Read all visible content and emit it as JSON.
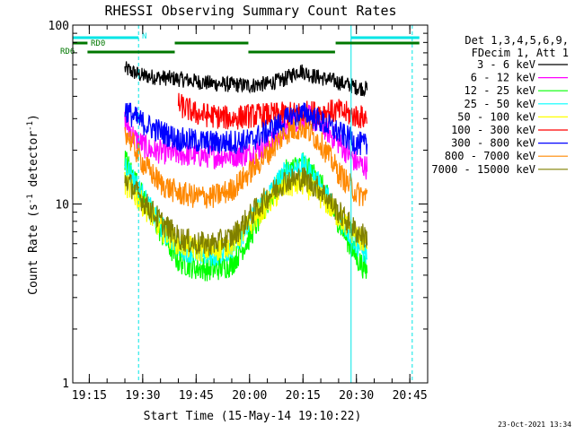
{
  "colors": {
    "background": "#ffffff",
    "axis": "#000000",
    "text": "#000000",
    "flag_cyan": "#00e5e5",
    "flag_green": "#007700"
  },
  "chart_data": {
    "type": "line",
    "title": "RHESSI Observing Summary Count Rates",
    "xlabel": "Start Time (15-May-14 19:10:22)",
    "ylabel_parts": [
      "Count Rate (s",
      "-1",
      " detector",
      "-1",
      ")"
    ],
    "x_unit": "HH:MM",
    "xlim": [
      "19:10:22",
      "20:50:00"
    ],
    "ylim": [
      1,
      100
    ],
    "y_scale": "log",
    "grid": false,
    "legend_position": "right",
    "xticks": [
      "19:15",
      "19:30",
      "19:45",
      "20:00",
      "20:15",
      "20:30",
      "20:45"
    ],
    "yticks": [
      {
        "value": 1,
        "label": "1"
      },
      {
        "value": 10,
        "label": "10"
      },
      {
        "value": 100,
        "label": "100"
      }
    ],
    "legend_header": [
      "Det 1,3,4,5,6,9,",
      "FDecim 1, Att 1"
    ],
    "timestamp": "23-Oct-2021 13:34",
    "data_start": "19:24:40",
    "data_end": "20:33:00",
    "vlines": [
      {
        "time": "19:28:50",
        "color": "#00e5e5",
        "style": "dashed"
      },
      {
        "time": "20:28:30",
        "color": "#00e5e5",
        "style": "solid"
      },
      {
        "time": "20:45:40",
        "color": "#00e5e5",
        "style": "dashed"
      }
    ],
    "flags": [
      {
        "label": "N",
        "color": "#00e5e5",
        "segments": [
          [
            "19:10:22",
            "19:28:50"
          ],
          [
            "20:28:30",
            "20:47:40"
          ]
        ]
      },
      {
        "label": "RD0",
        "color": "#007700",
        "segments": [
          [
            "19:10:22",
            "19:14:30"
          ],
          [
            "19:39:00",
            "19:59:40"
          ],
          [
            "20:24:10",
            "20:47:40"
          ]
        ]
      },
      {
        "label": "RD6",
        "color": "#007700",
        "segments": [
          [
            "19:14:30",
            "19:39:00"
          ],
          [
            "19:59:40",
            "20:24:00"
          ]
        ]
      }
    ],
    "series": [
      {
        "name": "3 - 6 keV",
        "color": "#000000",
        "points": [
          [
            "19:25",
            57
          ],
          [
            "19:30",
            52
          ],
          [
            "19:40",
            50
          ],
          [
            "19:50",
            47
          ],
          [
            "20:00",
            46
          ],
          [
            "20:05",
            47
          ],
          [
            "20:10",
            50
          ],
          [
            "20:14",
            56
          ],
          [
            "20:18",
            52
          ],
          [
            "20:25",
            48
          ],
          [
            "20:30",
            45
          ],
          [
            "20:33",
            44
          ]
        ]
      },
      {
        "name": "6 - 12 keV",
        "color": "#ff00ff",
        "points": [
          [
            "19:25",
            29
          ],
          [
            "19:28",
            23
          ],
          [
            "19:32",
            20
          ],
          [
            "19:40",
            19
          ],
          [
            "19:50",
            18.5
          ],
          [
            "20:00",
            19
          ],
          [
            "20:06",
            22
          ],
          [
            "20:12",
            29
          ],
          [
            "20:16",
            31
          ],
          [
            "20:20",
            28
          ],
          [
            "20:25",
            22
          ],
          [
            "20:30",
            17
          ],
          [
            "20:33",
            16
          ]
        ]
      },
      {
        "name": "12 - 25 keV",
        "color": "#00ff00",
        "points": [
          [
            "19:25",
            18
          ],
          [
            "19:30",
            11
          ],
          [
            "19:35",
            7
          ],
          [
            "19:40",
            4.8
          ],
          [
            "19:45",
            4.4
          ],
          [
            "19:50",
            4.3
          ],
          [
            "19:55",
            4.6
          ],
          [
            "20:00",
            6.5
          ],
          [
            "20:05",
            10
          ],
          [
            "20:10",
            15
          ],
          [
            "20:15",
            17
          ],
          [
            "20:20",
            13
          ],
          [
            "20:25",
            8
          ],
          [
            "20:30",
            5
          ],
          [
            "20:33",
            4.2
          ]
        ]
      },
      {
        "name": "25 - 50 keV",
        "color": "#00ffff",
        "points": [
          [
            "19:25",
            17
          ],
          [
            "19:30",
            11
          ],
          [
            "19:35",
            7.5
          ],
          [
            "19:40",
            5.8
          ],
          [
            "19:45",
            5.3
          ],
          [
            "19:50",
            5.2
          ],
          [
            "19:55",
            5.7
          ],
          [
            "20:00",
            7.8
          ],
          [
            "20:05",
            11
          ],
          [
            "20:10",
            15
          ],
          [
            "20:15",
            16.5
          ],
          [
            "20:20",
            12.5
          ],
          [
            "20:25",
            8.5
          ],
          [
            "20:30",
            6
          ],
          [
            "20:33",
            5.2
          ]
        ]
      },
      {
        "name": "50 - 100 keV",
        "color": "#ffff00",
        "points": [
          [
            "19:25",
            13
          ],
          [
            "19:30",
            10
          ],
          [
            "19:35",
            7.3
          ],
          [
            "19:40",
            6
          ],
          [
            "19:45",
            5.6
          ],
          [
            "19:50",
            5.5
          ],
          [
            "19:55",
            6
          ],
          [
            "20:00",
            7.6
          ],
          [
            "20:05",
            10
          ],
          [
            "20:10",
            12.5
          ],
          [
            "20:15",
            13
          ],
          [
            "20:20",
            11
          ],
          [
            "20:25",
            8.5
          ],
          [
            "20:30",
            6.6
          ],
          [
            "20:33",
            6
          ]
        ]
      },
      {
        "name": "100 - 300 keV",
        "color": "#ff0000",
        "points": [
          [
            "19:40",
            36
          ],
          [
            "19:45",
            32
          ],
          [
            "19:50",
            31
          ],
          [
            "19:55",
            30
          ],
          [
            "19:59",
            31
          ],
          [
            "20:25",
            33
          ],
          [
            "20:30",
            31
          ],
          [
            "20:33",
            30
          ]
        ]
      },
      {
        "name": "300 - 800 keV",
        "color": "#0000ff",
        "points": [
          [
            "19:25",
            34
          ],
          [
            "19:28",
            30
          ],
          [
            "19:32",
            27
          ],
          [
            "19:40",
            23
          ],
          [
            "19:50",
            22
          ],
          [
            "20:00",
            22.5
          ],
          [
            "20:06",
            26
          ],
          [
            "20:12",
            31
          ],
          [
            "20:16",
            32
          ],
          [
            "20:20",
            29
          ],
          [
            "20:25",
            25
          ],
          [
            "20:30",
            22
          ],
          [
            "20:33",
            21
          ]
        ]
      },
      {
        "name": "800 - 7000 keV",
        "color": "#ff8800",
        "points": [
          [
            "19:25",
            26
          ],
          [
            "19:30",
            17
          ],
          [
            "19:35",
            13
          ],
          [
            "19:40",
            11.5
          ],
          [
            "19:45",
            11
          ],
          [
            "19:50",
            11
          ],
          [
            "19:55",
            12
          ],
          [
            "20:00",
            15
          ],
          [
            "20:05",
            19
          ],
          [
            "20:10",
            25
          ],
          [
            "20:15",
            27
          ],
          [
            "20:20",
            22
          ],
          [
            "20:25",
            15
          ],
          [
            "20:30",
            11.5
          ],
          [
            "20:33",
            11
          ]
        ]
      },
      {
        "name": "7000 - 15000 keV",
        "color": "#808000",
        "points": [
          [
            "19:25",
            14
          ],
          [
            "19:30",
            10.5
          ],
          [
            "19:35",
            8
          ],
          [
            "19:40",
            6.5
          ],
          [
            "19:45",
            6
          ],
          [
            "19:50",
            6
          ],
          [
            "19:55",
            6.5
          ],
          [
            "20:00",
            8.5
          ],
          [
            "20:05",
            11
          ],
          [
            "20:10",
            13.5
          ],
          [
            "20:15",
            14
          ],
          [
            "20:20",
            12
          ],
          [
            "20:25",
            9
          ],
          [
            "20:30",
            7
          ],
          [
            "20:33",
            6.5
          ]
        ]
      }
    ]
  }
}
